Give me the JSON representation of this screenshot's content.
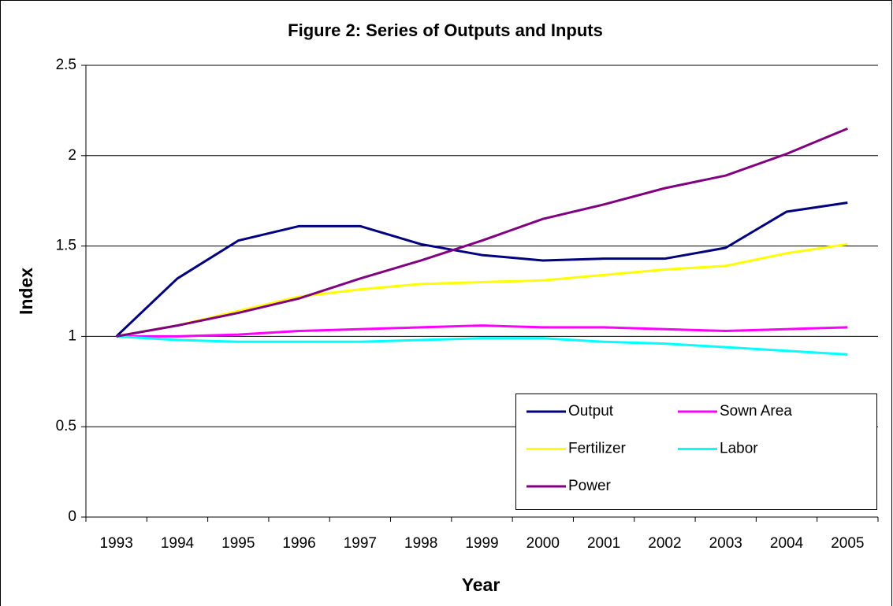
{
  "chart_data": {
    "type": "line",
    "title": "Figure 2: Series of Outputs and Inputs",
    "x_label": "Year",
    "y_label": "Index",
    "categories": [
      "1993",
      "1994",
      "1995",
      "1996",
      "1997",
      "1998",
      "1999",
      "2000",
      "2001",
      "2002",
      "2003",
      "2004",
      "2005"
    ],
    "series": [
      {
        "name": "Output",
        "color": "#000080",
        "values": [
          1,
          1.32,
          1.53,
          1.61,
          1.61,
          1.51,
          1.45,
          1.42,
          1.43,
          1.43,
          1.49,
          1.69,
          1.74
        ]
      },
      {
        "name": "Sown Area",
        "color": "#FF00FF",
        "values": [
          1,
          1.0,
          1.01,
          1.03,
          1.04,
          1.05,
          1.06,
          1.05,
          1.05,
          1.04,
          1.03,
          1.04,
          1.05
        ]
      },
      {
        "name": "Fertilizer",
        "color": "#FFFF00",
        "values": [
          1,
          1.06,
          1.14,
          1.22,
          1.26,
          1.29,
          1.3,
          1.31,
          1.34,
          1.37,
          1.39,
          1.46,
          1.51
        ]
      },
      {
        "name": "Labor",
        "color": "#00FFFF",
        "values": [
          1,
          0.98,
          0.97,
          0.97,
          0.97,
          0.98,
          0.99,
          0.99,
          0.97,
          0.96,
          0.94,
          0.92,
          0.9
        ]
      },
      {
        "name": "Power",
        "color": "#800080",
        "values": [
          1,
          1.06,
          1.13,
          1.21,
          1.32,
          1.42,
          1.53,
          1.65,
          1.73,
          1.82,
          1.89,
          2.01,
          2.15
        ]
      }
    ],
    "ylim": [
      0,
      2.5
    ],
    "yticks": [
      0,
      0.5,
      1,
      1.5,
      2,
      2.5
    ],
    "grid": true
  }
}
